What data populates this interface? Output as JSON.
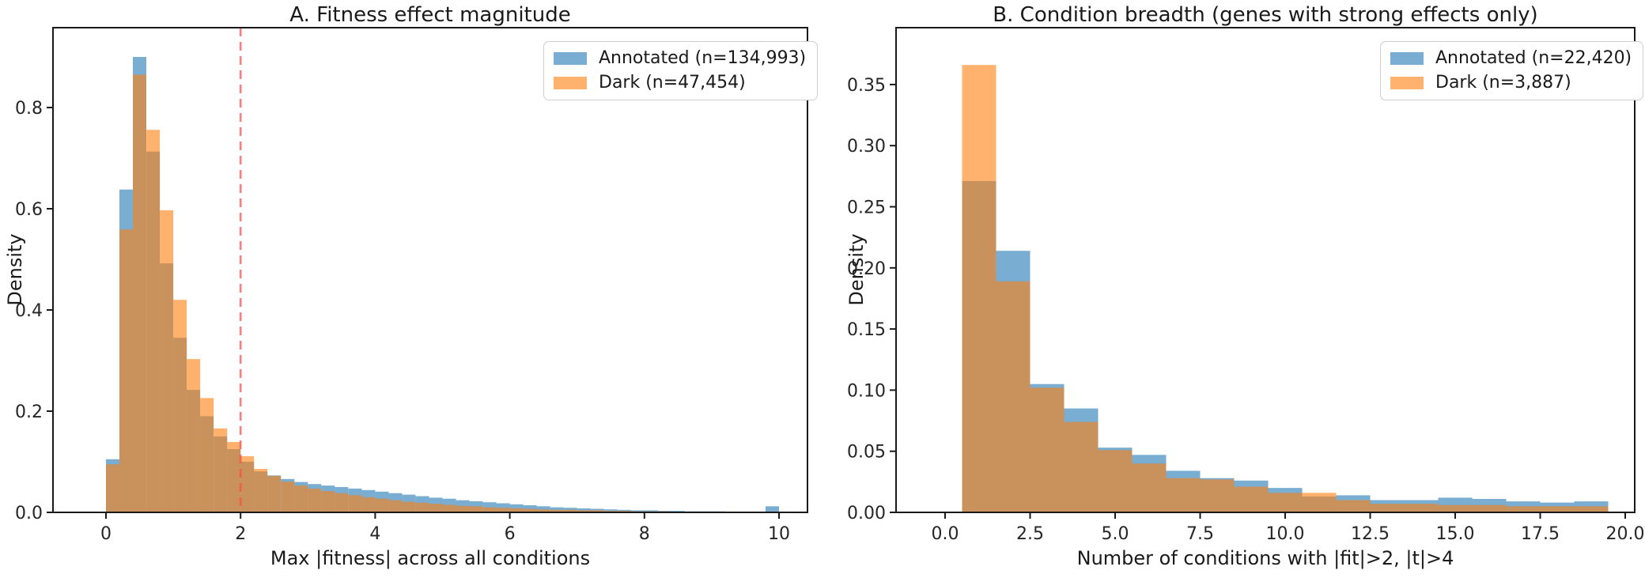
{
  "chart_data": [
    {
      "type": "histogram-overlay",
      "title": "A. Fitness effect magnitude",
      "xlabel": "Max |fitness| across all conditions",
      "ylabel": "Density",
      "alpha": 0.6,
      "bins": {
        "start": 0.0,
        "width": 0.2
      },
      "xlim": [
        -0.79,
        10.42
      ],
      "ylim": [
        0,
        0.958
      ],
      "xticks": [
        0,
        2,
        4,
        6,
        8,
        10
      ],
      "xtick_labels": [
        "0",
        "2",
        "4",
        "6",
        "8",
        "10"
      ],
      "yticks": [
        0.0,
        0.2,
        0.4,
        0.6,
        0.8
      ],
      "ytick_labels": [
        "0.0",
        "0.2",
        "0.4",
        "0.6",
        "0.8"
      ],
      "grid": false,
      "legend_position": "upper-right",
      "vline": {
        "x": 2,
        "color": "#fa4b4b",
        "style": "dashed",
        "opacity": 0.72
      },
      "series": [
        {
          "name": "Annotated (n=134,993)",
          "color": "#1f77b4",
          "values": [
            0.105,
            0.638,
            0.9,
            0.713,
            0.492,
            0.345,
            0.242,
            0.19,
            0.15,
            0.125,
            0.1,
            0.081,
            0.073,
            0.066,
            0.06,
            0.056,
            0.053,
            0.05,
            0.047,
            0.044,
            0.041,
            0.038,
            0.035,
            0.032,
            0.029,
            0.027,
            0.024,
            0.022,
            0.02,
            0.018,
            0.016,
            0.014,
            0.012,
            0.01,
            0.009,
            0.008,
            0.007,
            0.006,
            0.005,
            0.004,
            0.004,
            0.003,
            0.003,
            0.002,
            0.002,
            0.002,
            0.001,
            0.001,
            0.0,
            0.012
          ]
        },
        {
          "name": "Dark (n=47,454)",
          "color": "#ff7f0e",
          "values": [
            0.095,
            0.559,
            0.865,
            0.756,
            0.597,
            0.42,
            0.303,
            0.226,
            0.166,
            0.139,
            0.111,
            0.086,
            0.072,
            0.061,
            0.053,
            0.047,
            0.042,
            0.038,
            0.034,
            0.03,
            0.027,
            0.024,
            0.021,
            0.019,
            0.017,
            0.015,
            0.013,
            0.012,
            0.01,
            0.009,
            0.008,
            0.007,
            0.006,
            0.005,
            0.005,
            0.004,
            0.004,
            0.003,
            0.003,
            0.002,
            0.002,
            0.002,
            0.001,
            0.001,
            0.001,
            0.001,
            0.0,
            0.0,
            0.0,
            0.0
          ]
        }
      ]
    },
    {
      "type": "histogram-overlay",
      "title": "B. Condition breadth (genes with strong effects only)",
      "xlabel": "Number of conditions with |fit|>2, |t|>4",
      "ylabel": "Density",
      "alpha": 0.6,
      "bins": {
        "start": 0.5,
        "width": 1.0
      },
      "xlim": [
        -1.45,
        20.25
      ],
      "ylim": [
        0,
        0.3965
      ],
      "xticks": [
        0,
        2.5,
        5,
        7.5,
        10,
        12.5,
        15,
        17.5,
        20
      ],
      "xtick_labels": [
        "0.0",
        "2.5",
        "5.0",
        "7.5",
        "10.0",
        "12.5",
        "15.0",
        "17.5",
        "20.0"
      ],
      "yticks": [
        0.0,
        0.05,
        0.1,
        0.15,
        0.2,
        0.25,
        0.3,
        0.35
      ],
      "ytick_labels": [
        "0.00",
        "0.05",
        "0.10",
        "0.15",
        "0.20",
        "0.25",
        "0.30",
        "0.35"
      ],
      "grid": false,
      "legend_position": "upper-right",
      "series": [
        {
          "name": "Annotated (n=22,420)",
          "color": "#1f77b4",
          "values": [
            0.271,
            0.214,
            0.105,
            0.085,
            0.053,
            0.047,
            0.034,
            0.028,
            0.026,
            0.02,
            0.013,
            0.014,
            0.01,
            0.01,
            0.012,
            0.011,
            0.009,
            0.008,
            0.009
          ]
        },
        {
          "name": "Dark (n=3,887)",
          "color": "#ff7f0e",
          "values": [
            0.366,
            0.189,
            0.102,
            0.074,
            0.051,
            0.04,
            0.028,
            0.027,
            0.021,
            0.016,
            0.016,
            0.01,
            0.007,
            0.007,
            0.006,
            0.006,
            0.005,
            0.005,
            0.005
          ]
        }
      ]
    }
  ]
}
